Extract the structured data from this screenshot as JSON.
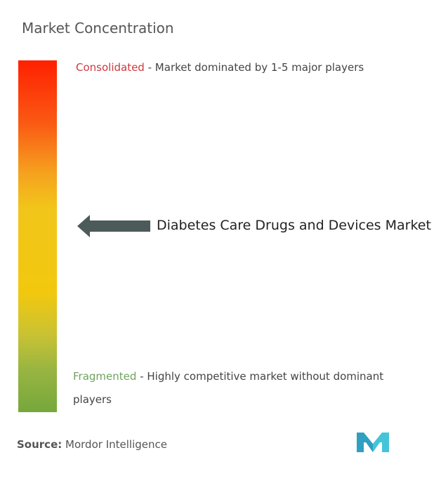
{
  "title": "Market Concentration",
  "chart_data": {
    "type": "gradient-scale",
    "title": "Market Concentration",
    "scale_top": {
      "keyword": "Consolidated",
      "description": "- Market dominated by 1-5 major players"
    },
    "scale_bottom": {
      "keyword": "Fragmented",
      "description": "- Highly competitive market without dominant players"
    },
    "marker": {
      "label": "Diabetes Care Drugs and Devices Market",
      "position_from_top": 0.47
    },
    "colors": {
      "top": "#ff2000",
      "upper_middle": "#f5a21e",
      "middle": "#f2c80e",
      "bottom": "#76a73c",
      "arrow": "#4d5a5a",
      "consolidated_text": "#d0383c",
      "fragmented_text": "#6fa35e"
    }
  },
  "source": {
    "label": "Source:",
    "value": "Mordor Intelligence"
  },
  "logo": {
    "icon": "mordor-intelligence-logo-icon",
    "color_left": "#2f9fc2",
    "color_right": "#44c4d8"
  }
}
